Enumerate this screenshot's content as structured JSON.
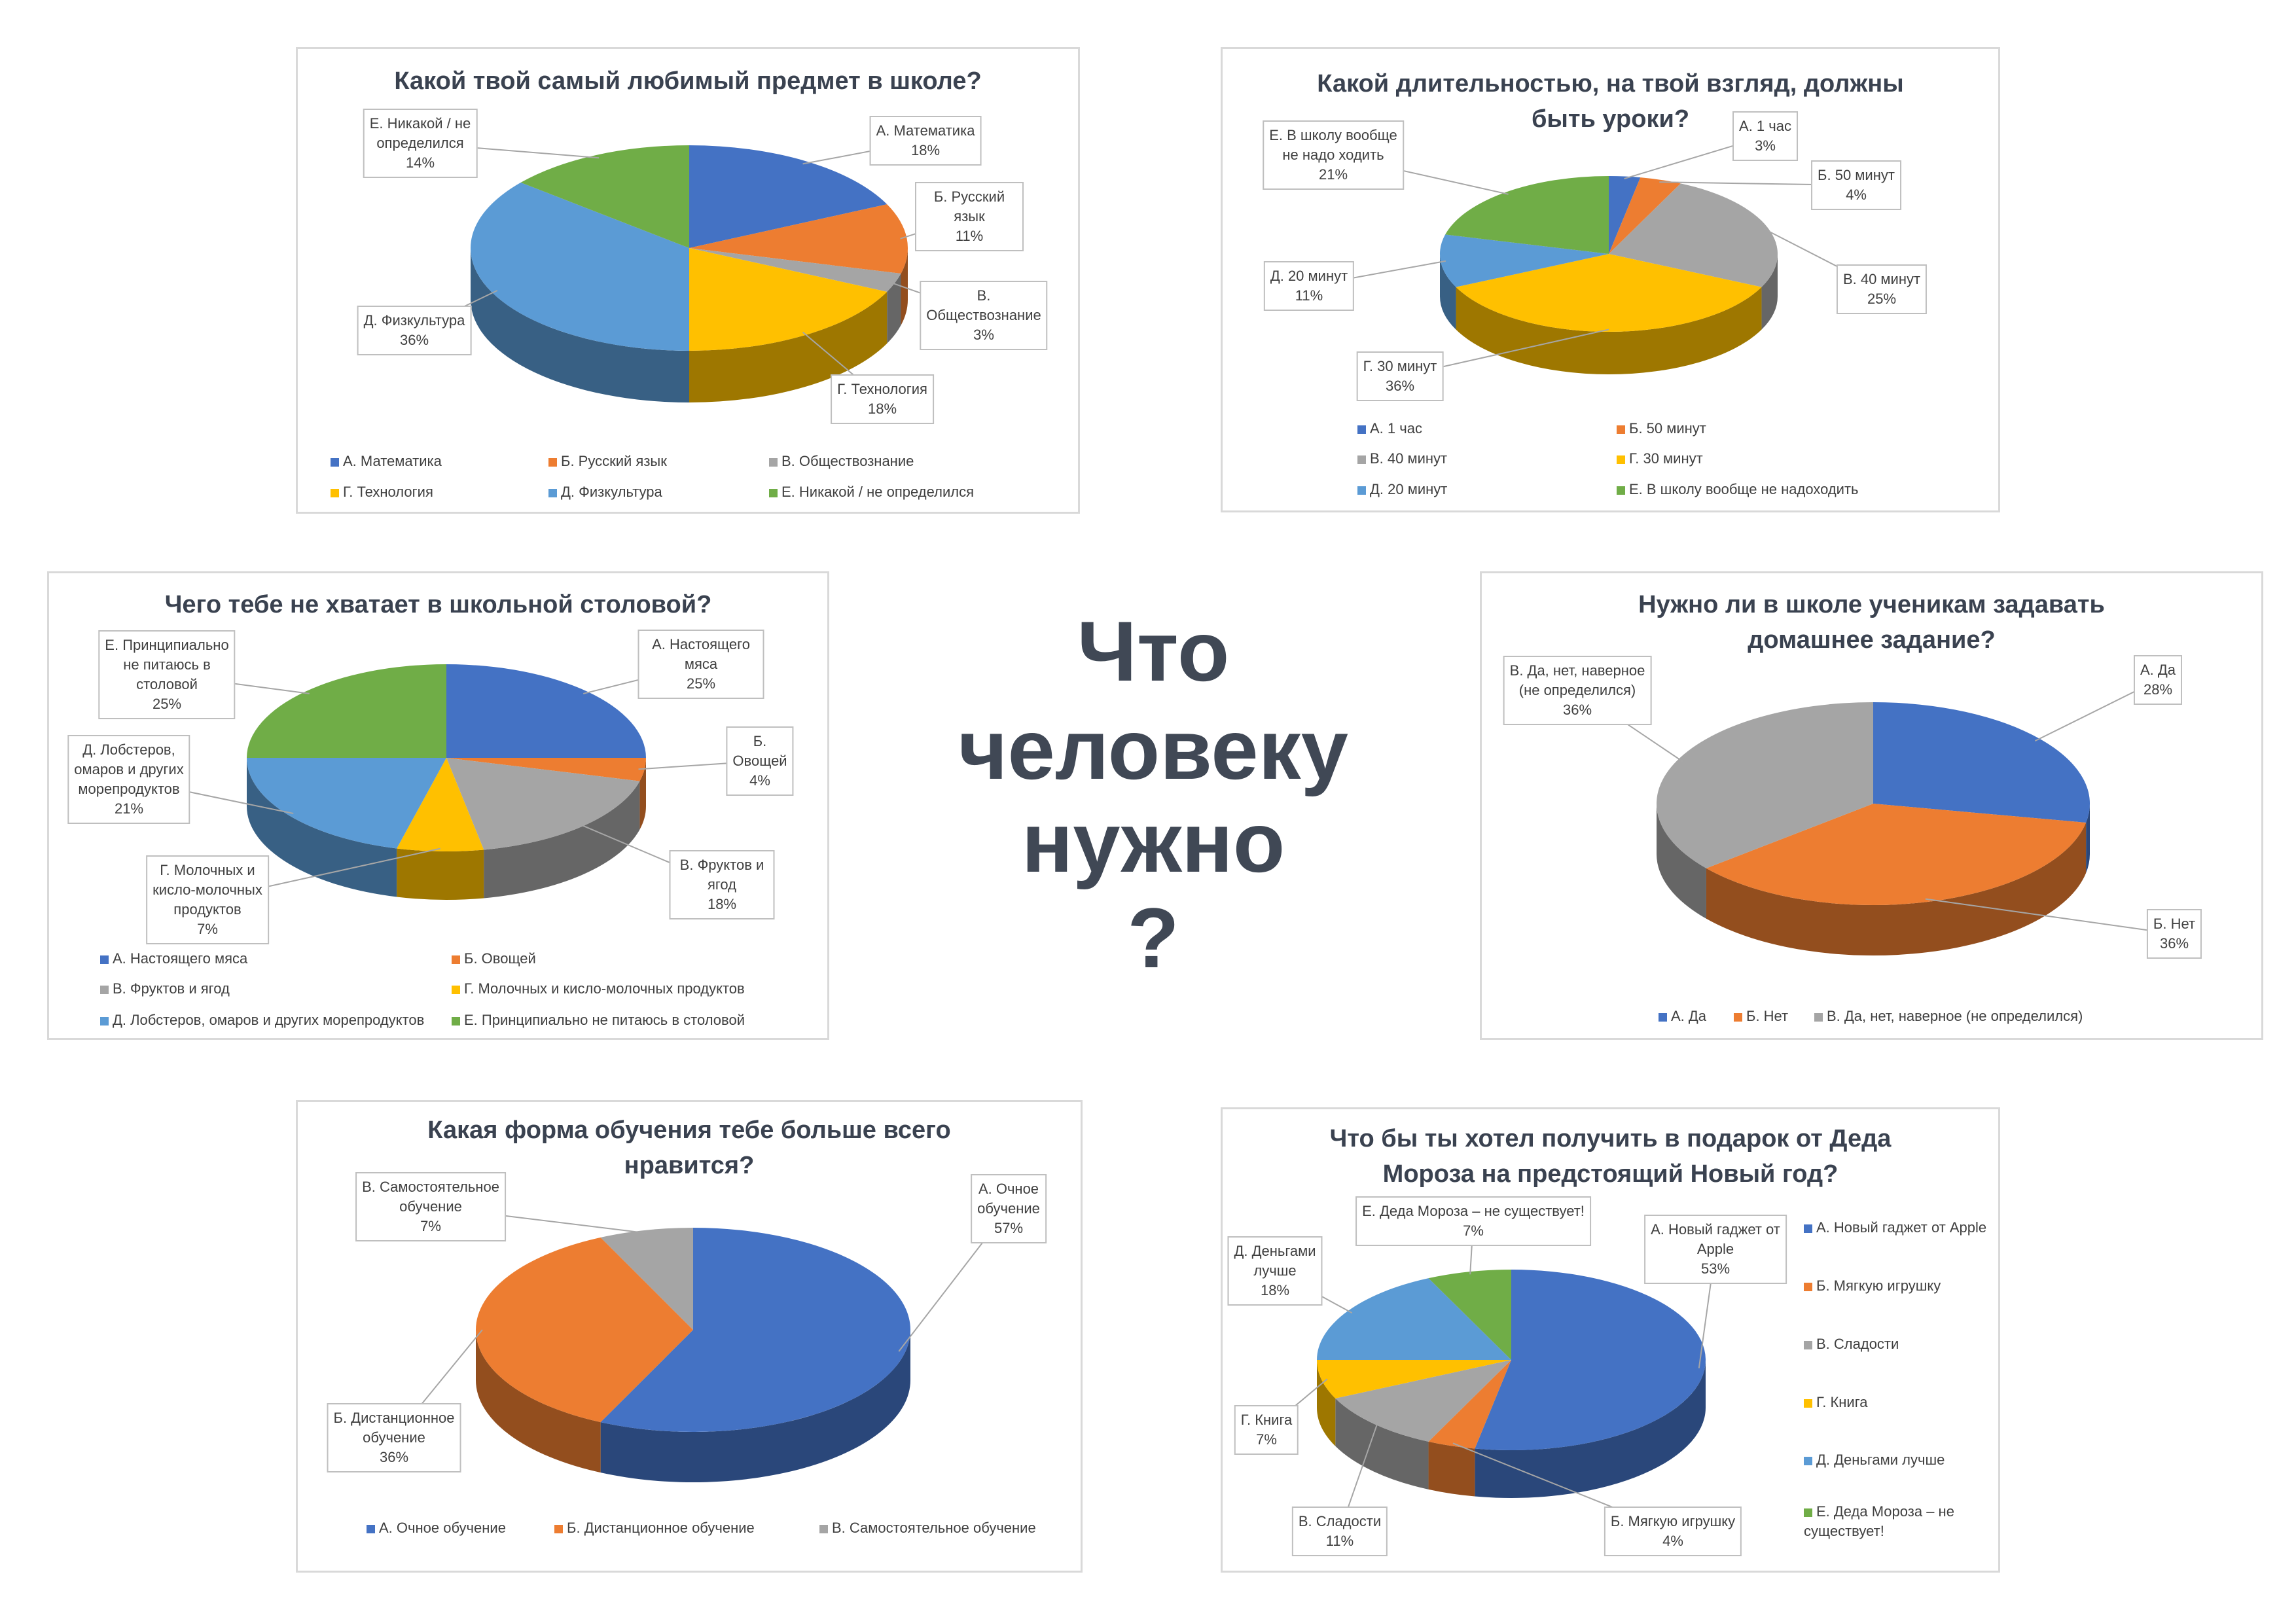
{
  "center_title": [
    "Что",
    "человеку",
    "нужно",
    "?"
  ],
  "colors": [
    "#4472c4",
    "#ed7d31",
    "#a5a5a5",
    "#ffc000",
    "#5b9bd5",
    "#70ad47"
  ],
  "chart_data": [
    {
      "type": "pie",
      "title": "Какой твой самый любимый предмет в школе?",
      "slices": [
        {
          "legend": "А. Математика",
          "data_label": "А. Математика",
          "value": 18
        },
        {
          "legend": "Б. Русский язык",
          "data_label": "Б. Русский язык",
          "value": 11
        },
        {
          "legend": "В. Обществознание",
          "data_label": "В. Обществознание",
          "value": 3
        },
        {
          "legend": "Г. Технология",
          "data_label": "Г. Технология",
          "value": 18
        },
        {
          "legend": "Д. Физкультура",
          "data_label": "Д. Физкультура",
          "value": 36
        },
        {
          "legend": "Е. Никакой / не определился",
          "data_label": "Е. Никакой / не\nопределился",
          "value": 14
        }
      ],
      "legend_position": "bottom"
    },
    {
      "type": "pie",
      "title": "Какой длительностью, на твой взгляд, должны\nбыть уроки?",
      "slices": [
        {
          "legend": "А. 1 час",
          "data_label": "А. 1 час",
          "value": 3
        },
        {
          "legend": "Б. 50 минут",
          "data_label": "Б. 50 минут",
          "value": 4
        },
        {
          "legend": "В. 40 минут",
          "data_label": "В. 40 минут",
          "value": 25
        },
        {
          "legend": "Г. 30 минут",
          "data_label": "Г. 30 минут",
          "value": 36
        },
        {
          "legend": "Д. 20 минут",
          "data_label": "Д. 20 минут",
          "value": 11
        },
        {
          "legend": "Е. В школу вообще не надоходить",
          "data_label": "Е. В школу вообще\nне надо ходить",
          "value": 21
        }
      ],
      "legend_position": "bottom"
    },
    {
      "type": "pie",
      "title": "Чего тебе не хватает в школьной  столовой?",
      "slices": [
        {
          "legend": "А. Настоящего мяса",
          "data_label": "А. Настоящего мяса",
          "value": 25
        },
        {
          "legend": "Б. Овощей",
          "data_label": "Б. Овощей",
          "value": 4
        },
        {
          "legend": "В. Фруктов и ягод",
          "data_label": "В. Фруктов и ягод",
          "value": 18
        },
        {
          "legend": "Г. Молочных и кисло-молочных продуктов",
          "data_label": "Г. Молочных и\nкисло-молочных\nпродуктов",
          "value": 7
        },
        {
          "legend": "Д. Лобстеров, омаров и других морепродуктов",
          "data_label": "Д. Лобстеров,\nомаров и других\nморепродуктов",
          "value": 21
        },
        {
          "legend": "Е. Принципиально не питаюсь в столовой",
          "data_label": "Е. Принципиально\nне питаюсь в\nстоловой",
          "value": 25
        }
      ],
      "legend_position": "bottom"
    },
    {
      "type": "pie",
      "title": "Нужно ли в школе ученикам задавать\nдомашнее задание?",
      "slices": [
        {
          "legend": "А. Да",
          "data_label": "А. Да",
          "value": 28
        },
        {
          "legend": "Б. Нет",
          "data_label": "Б. Нет",
          "value": 36
        },
        {
          "legend": "В. Да, нет, наверное (не определился)",
          "data_label": "В. Да, нет, наверное\n(не определился)",
          "value": 36
        }
      ],
      "legend_position": "bottom"
    },
    {
      "type": "pie",
      "title": "Какая форма обучения тебе больше всего\nнравится?",
      "slices": [
        {
          "legend": "А. Очное обучение",
          "data_label": "А. Очное обучение",
          "value": 57
        },
        {
          "legend": "Б. Дистанционное обучение",
          "data_label": "Б. Дистанционное\nобучение",
          "value": 36
        },
        {
          "legend": "В. Самостоятельное обучение",
          "data_label": "В. Самостоятельное\nобучение",
          "value": 7
        }
      ],
      "legend_position": "bottom"
    },
    {
      "type": "pie",
      "title": "Что бы ты хотел получить в подарок  от Деда\nМороза на предстоящий Новый год?",
      "slices": [
        {
          "legend": "А. Новый гаджет от Apple",
          "data_label": "А. Новый гаджет от\nApple",
          "value": 53
        },
        {
          "legend": "Б. Мягкую игрушку",
          "data_label": "Б. Мягкую игрушку",
          "value": 4
        },
        {
          "legend": "В. Сладости",
          "data_label": "В. Сладости",
          "value": 11
        },
        {
          "legend": "Г. Книга",
          "data_label": "Г. Книга",
          "value": 7
        },
        {
          "legend": "Д. Деньгами лучше",
          "data_label": "Д. Деньгами\nлучше",
          "value": 18
        },
        {
          "legend": "Е. Деда Мороза – не существует!",
          "data_label": "Е. Деда Мороза – не существует!",
          "value": 7
        }
      ],
      "legend_position": "right"
    }
  ]
}
